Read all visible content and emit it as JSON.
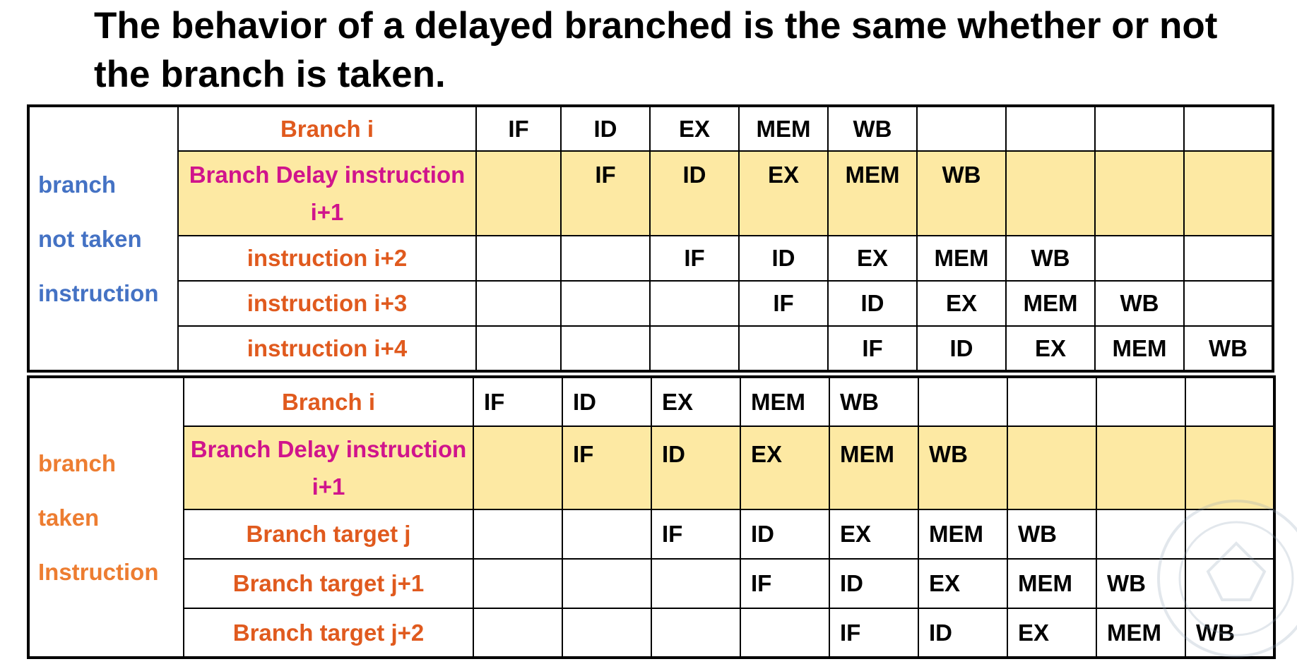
{
  "title": "The behavior of a delayed branched is the same whether or not the branch is taken.",
  "not_taken": {
    "group_label": [
      "branch",
      "not taken",
      "instruction"
    ],
    "rows": [
      {
        "label": "Branch i",
        "stages": [
          "IF",
          "ID",
          "EX",
          "MEM",
          "WB",
          "",
          "",
          "",
          ""
        ]
      },
      {
        "label": "Branch Delay instruction i+1",
        "delay": true,
        "stages": [
          "",
          "IF",
          "ID",
          "EX",
          "MEM",
          "WB",
          "",
          "",
          ""
        ]
      },
      {
        "label": "instruction i+2",
        "stages": [
          "",
          "",
          "IF",
          "ID",
          "EX",
          "MEM",
          "WB",
          "",
          ""
        ]
      },
      {
        "label": "instruction i+3",
        "stages": [
          "",
          "",
          "",
          "IF",
          "ID",
          "EX",
          "MEM",
          "WB",
          ""
        ]
      },
      {
        "label": "instruction i+4",
        "stages": [
          "",
          "",
          "",
          "",
          "IF",
          "ID",
          "EX",
          "MEM",
          "WB"
        ]
      }
    ]
  },
  "taken": {
    "group_label": [
      "branch",
      "taken",
      "Instruction"
    ],
    "rows": [
      {
        "label": "Branch i",
        "stages": [
          "IF",
          "ID",
          "EX",
          "MEM",
          "WB",
          "",
          "",
          "",
          ""
        ]
      },
      {
        "label": "Branch Delay instruction i+1",
        "delay": true,
        "stages": [
          "",
          "IF",
          "ID",
          "EX",
          "MEM",
          "WB",
          "",
          "",
          ""
        ]
      },
      {
        "label": "Branch target  j",
        "stages": [
          "",
          "",
          "IF",
          "ID",
          "EX",
          "MEM",
          "WB",
          "",
          ""
        ]
      },
      {
        "label": "Branch target  j+1",
        "stages": [
          "",
          "",
          "",
          "IF",
          "ID",
          "EX",
          "MEM",
          "WB",
          ""
        ]
      },
      {
        "label": "Branch target  j+2",
        "stages": [
          "",
          "",
          "",
          "",
          "IF",
          "ID",
          "EX",
          "MEM",
          "WB"
        ]
      }
    ]
  }
}
